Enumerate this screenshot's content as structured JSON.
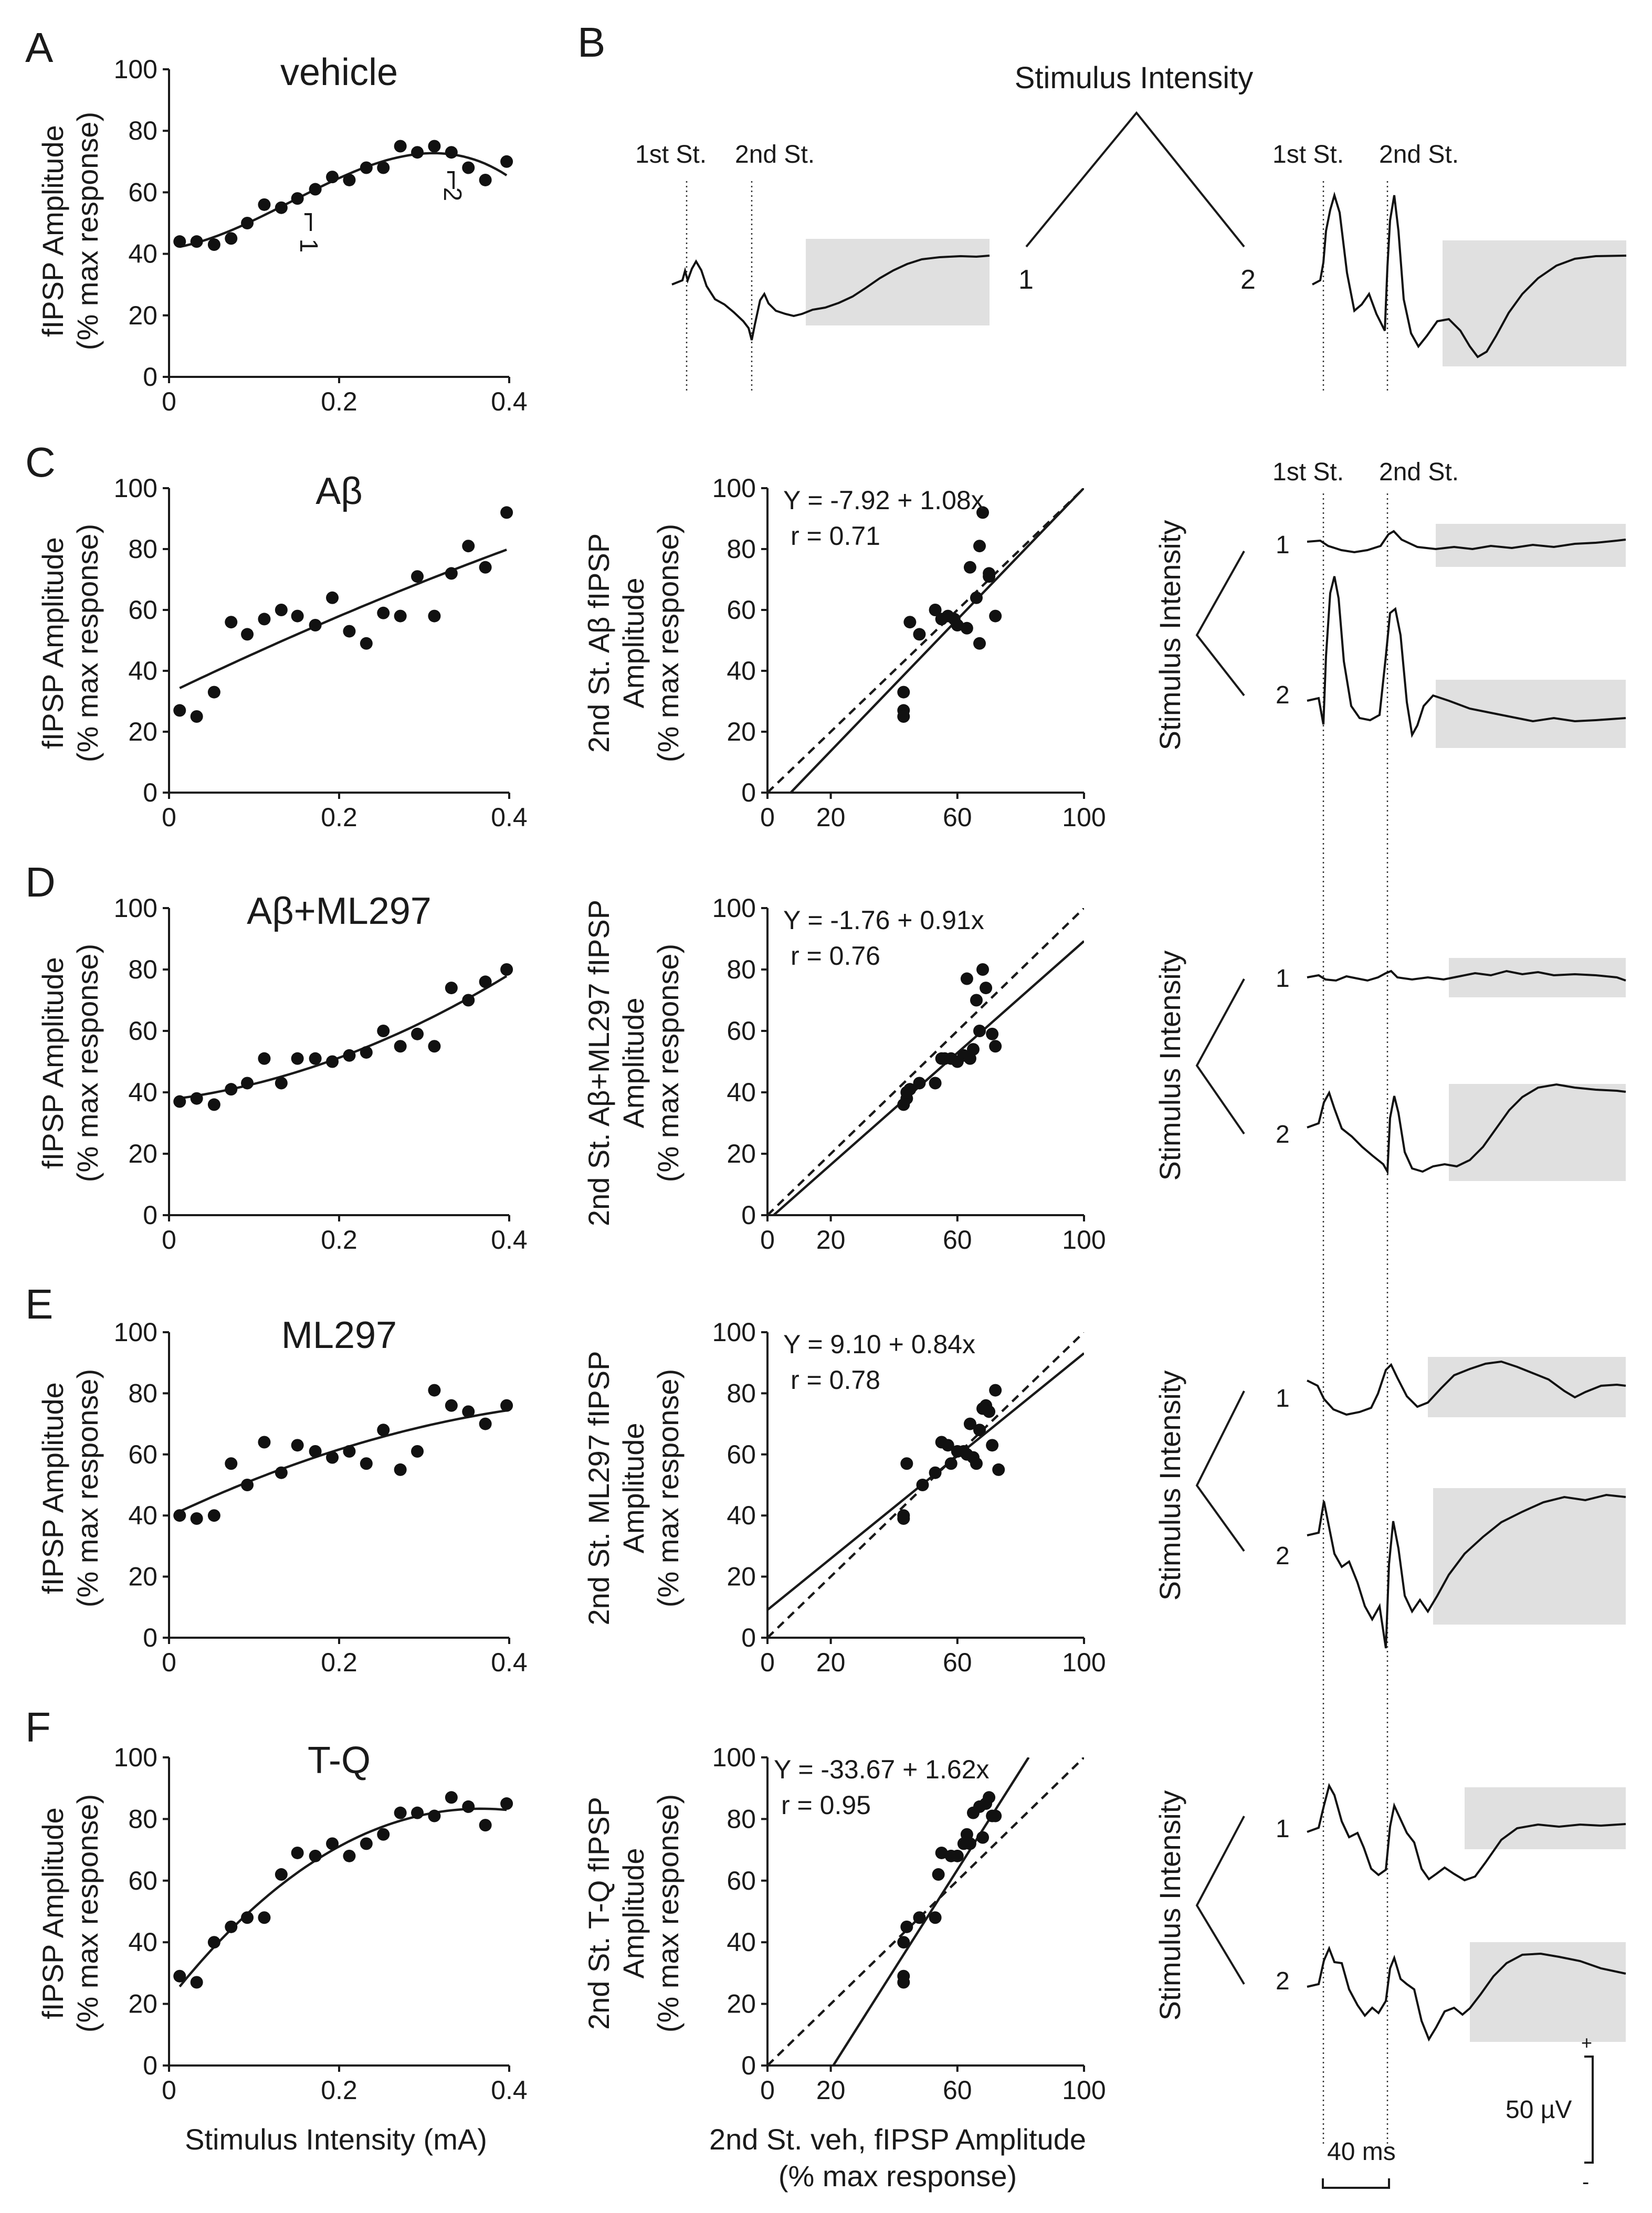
{
  "panel_letters": {
    "A": "A",
    "B": "B",
    "C": "C",
    "D": "D",
    "E": "E",
    "F": "F"
  },
  "y_axis_title_line1": "fIPSP Amplitude",
  "y_axis_title_line2": "(% max response)",
  "x_axis_title": "Stimulus Intensity (mA)",
  "scatter_x_title_line1": "2nd St. veh, fIPSP Amplitude",
  "scatter_x_title_line2": "(% max response)",
  "panel_b": {
    "stimulus_intensity": "Stimulus Intensity",
    "first_st": "1st St.",
    "second_st": "2nd St.",
    "label_1": "1",
    "label_2": "2",
    "marker_1": "1",
    "marker_2": "2"
  },
  "trace_labels": {
    "stimulus_intensity": "Stimulus Intensity",
    "first_st": "1st St.",
    "second_st": "2nd St.",
    "label_1": "1",
    "label_2": "2"
  },
  "scale_bar": {
    "time": "40 ms",
    "voltage": "50 µV",
    "plus": "+",
    "minus": "-"
  },
  "chart_data": [
    {
      "id": "A",
      "type": "scatter",
      "title": "vehicle",
      "xlabel": "Stimulus Intensity (mA)",
      "ylabel": "fIPSP Amplitude (% max response)",
      "xlim": [
        0,
        0.4
      ],
      "ylim": [
        0,
        100
      ],
      "xticks": [
        "0",
        "0.2",
        "0.4"
      ],
      "yticks": [
        "0",
        "20",
        "40",
        "60",
        "80",
        "100"
      ],
      "x": [
        0.0125,
        0.0325,
        0.053,
        0.073,
        0.092,
        0.112,
        0.132,
        0.151,
        0.172,
        0.192,
        0.212,
        0.232,
        0.252,
        0.272,
        0.292,
        0.312,
        0.332,
        0.352,
        0.372,
        0.397
      ],
      "y": [
        44,
        44,
        43,
        45,
        50,
        56,
        55,
        58,
        61,
        65,
        64,
        68,
        68,
        75,
        73,
        75,
        73,
        68,
        64,
        70
      ],
      "fit": "sigmoid"
    },
    {
      "id": "C",
      "type": "scatter",
      "title": "Aβ",
      "xlabel": "Stimulus Intensity (mA)",
      "ylabel": "fIPSP Amplitude (% max response)",
      "xlim": [
        0,
        0.4
      ],
      "ylim": [
        0,
        100
      ],
      "xticks": [
        "0",
        "0.2",
        "0.4"
      ],
      "yticks": [
        "0",
        "20",
        "40",
        "60",
        "80",
        "100"
      ],
      "x": [
        0.0125,
        0.0325,
        0.053,
        0.073,
        0.092,
        0.112,
        0.132,
        0.151,
        0.172,
        0.192,
        0.212,
        0.232,
        0.252,
        0.272,
        0.292,
        0.312,
        0.332,
        0.352,
        0.372,
        0.397
      ],
      "y": [
        27,
        25,
        33,
        56,
        52,
        57,
        60,
        58,
        55,
        64,
        53,
        49,
        59,
        58,
        71,
        58,
        72,
        81,
        74,
        92
      ],
      "fit": "polynomial"
    },
    {
      "id": "D",
      "type": "scatter",
      "title": "Aβ+ML297",
      "xlabel": "Stimulus Intensity (mA)",
      "ylabel": "fIPSP Amplitude (% max response)",
      "xlim": [
        0,
        0.4
      ],
      "ylim": [
        0,
        100
      ],
      "xticks": [
        "0",
        "0.2",
        "0.4"
      ],
      "yticks": [
        "0",
        "20",
        "40",
        "60",
        "80",
        "100"
      ],
      "x": [
        0.0125,
        0.0325,
        0.053,
        0.073,
        0.092,
        0.112,
        0.132,
        0.151,
        0.172,
        0.192,
        0.212,
        0.232,
        0.252,
        0.272,
        0.292,
        0.312,
        0.332,
        0.352,
        0.372,
        0.397
      ],
      "y": [
        37,
        38,
        36,
        41,
        43,
        51,
        43,
        51,
        51,
        50,
        52,
        53,
        60,
        55,
        59,
        55,
        74,
        70,
        76,
        80
      ],
      "fit": "polynomial"
    },
    {
      "id": "E",
      "type": "scatter",
      "title": "ML297",
      "xlabel": "Stimulus Intensity (mA)",
      "ylabel": "fIPSP Amplitude (% max response)",
      "xlim": [
        0,
        0.4
      ],
      "ylim": [
        0,
        100
      ],
      "xticks": [
        "0",
        "0.2",
        "0.4"
      ],
      "yticks": [
        "0",
        "20",
        "40",
        "60",
        "80",
        "100"
      ],
      "x": [
        0.0125,
        0.0325,
        0.053,
        0.073,
        0.092,
        0.112,
        0.132,
        0.151,
        0.172,
        0.192,
        0.212,
        0.232,
        0.252,
        0.272,
        0.292,
        0.312,
        0.332,
        0.352,
        0.372,
        0.397
      ],
      "y": [
        40,
        39,
        40,
        57,
        50,
        64,
        54,
        63,
        61,
        59,
        61,
        57,
        68,
        55,
        61,
        81,
        76,
        74,
        70,
        76
      ],
      "fit": "polynomial"
    },
    {
      "id": "F",
      "type": "scatter",
      "title": "T-Q",
      "xlabel": "Stimulus Intensity (mA)",
      "ylabel": "fIPSP Amplitude (% max response)",
      "xlim": [
        0,
        0.4
      ],
      "ylim": [
        0,
        100
      ],
      "xticks": [
        "0",
        "0.2",
        "0.4"
      ],
      "yticks": [
        "0",
        "20",
        "40",
        "60",
        "80",
        "100"
      ],
      "x": [
        0.0125,
        0.0325,
        0.053,
        0.073,
        0.092,
        0.112,
        0.132,
        0.151,
        0.172,
        0.192,
        0.212,
        0.232,
        0.252,
        0.272,
        0.292,
        0.312,
        0.332,
        0.352,
        0.372,
        0.397
      ],
      "y": [
        29,
        27,
        40,
        45,
        48,
        48,
        62,
        69,
        68,
        72,
        68,
        72,
        75,
        82,
        82,
        81,
        87,
        84,
        78,
        85
      ],
      "fit": "sigmoid"
    },
    {
      "id": "C-scatter",
      "type": "scatter",
      "equation": "Y = -7.92 + 1.08x",
      "r": "r = 0.71",
      "ylabel_line1": "2nd St. Aβ fIPSP",
      "ylabel_line2": "Amplitude",
      "ylabel_line3": "(% max response)",
      "xlim": [
        0,
        100
      ],
      "ylim": [
        0,
        100
      ],
      "xticks": [
        "0",
        "20",
        "60",
        "100"
      ],
      "yticks": [
        "0",
        "20",
        "40",
        "60",
        "80",
        "100"
      ],
      "x": [
        43,
        43,
        43,
        45,
        48,
        53,
        55,
        57,
        59,
        60,
        63,
        64,
        66,
        67,
        67,
        68,
        70,
        70,
        72
      ],
      "y": [
        33,
        27,
        25,
        56,
        52,
        60,
        57,
        58,
        57,
        55,
        54,
        74,
        64,
        49,
        81,
        92,
        72,
        71,
        58
      ],
      "intercept": -7.92,
      "slope": 1.08
    },
    {
      "id": "D-scatter",
      "type": "scatter",
      "equation": "Y = -1.76 + 0.91x",
      "r": "r = 0.76",
      "ylabel_line1": "2nd St. Aβ+ML297 fIPSP",
      "ylabel_line2": "Amplitude",
      "ylabel_line3": "(% max response)",
      "xlim": [
        0,
        100
      ],
      "ylim": [
        0,
        100
      ],
      "xticks": [
        "0",
        "20",
        "60",
        "100"
      ],
      "yticks": [
        "0",
        "20",
        "40",
        "60",
        "80",
        "100"
      ],
      "x": [
        43,
        44,
        44,
        45,
        48,
        53,
        55,
        56,
        58,
        60,
        62,
        63,
        64,
        65,
        66,
        67,
        68,
        69,
        71,
        72
      ],
      "y": [
        36,
        38,
        40,
        41,
        43,
        43,
        51,
        51,
        51,
        50,
        52,
        77,
        51,
        54,
        70,
        60,
        80,
        74,
        59,
        55
      ],
      "intercept": -1.76,
      "slope": 0.91
    },
    {
      "id": "E-scatter",
      "type": "scatter",
      "equation": "Y = 9.10 + 0.84x",
      "r": "r = 0.78",
      "ylabel_line1": "2nd St. ML297 fIPSP",
      "ylabel_line2": "Amplitude",
      "ylabel_line3": "(% max response)",
      "xlim": [
        0,
        100
      ],
      "ylim": [
        0,
        100
      ],
      "xticks": [
        "0",
        "20",
        "60",
        "100"
      ],
      "yticks": [
        "0",
        "20",
        "40",
        "60",
        "80",
        "100"
      ],
      "x": [
        43,
        43,
        44,
        49,
        53,
        55,
        57,
        58,
        60,
        62,
        63,
        64,
        65,
        66,
        67,
        68,
        69,
        70,
        71,
        72,
        73
      ],
      "y": [
        40,
        39,
        57,
        50,
        54,
        64,
        63,
        57,
        61,
        61,
        60,
        70,
        59,
        57,
        68,
        75,
        76,
        74,
        63,
        81,
        55
      ],
      "intercept": 9.1,
      "slope": 0.84
    },
    {
      "id": "F-scatter",
      "type": "scatter",
      "equation": "Y = -33.67 + 1.62x",
      "r": "r = 0.95",
      "ylabel_line1": "2nd St. T-Q fIPSP",
      "ylabel_line2": "Amplitude",
      "ylabel_line3": "(% max response)",
      "xlim": [
        0,
        100
      ],
      "ylim": [
        0,
        100
      ],
      "xticks": [
        "0",
        "20",
        "60",
        "100"
      ],
      "yticks": [
        "0",
        "20",
        "40",
        "60",
        "80",
        "100"
      ],
      "x": [
        43,
        43,
        43,
        44,
        48,
        53,
        54,
        55,
        58,
        60,
        62,
        63,
        64,
        65,
        67,
        68,
        69,
        70,
        71,
        72
      ],
      "y": [
        29,
        27,
        40,
        45,
        48,
        48,
        62,
        69,
        68,
        68,
        72,
        75,
        72,
        82,
        84,
        74,
        85,
        87,
        81,
        81
      ],
      "intercept": -33.67,
      "slope": 1.62
    }
  ]
}
